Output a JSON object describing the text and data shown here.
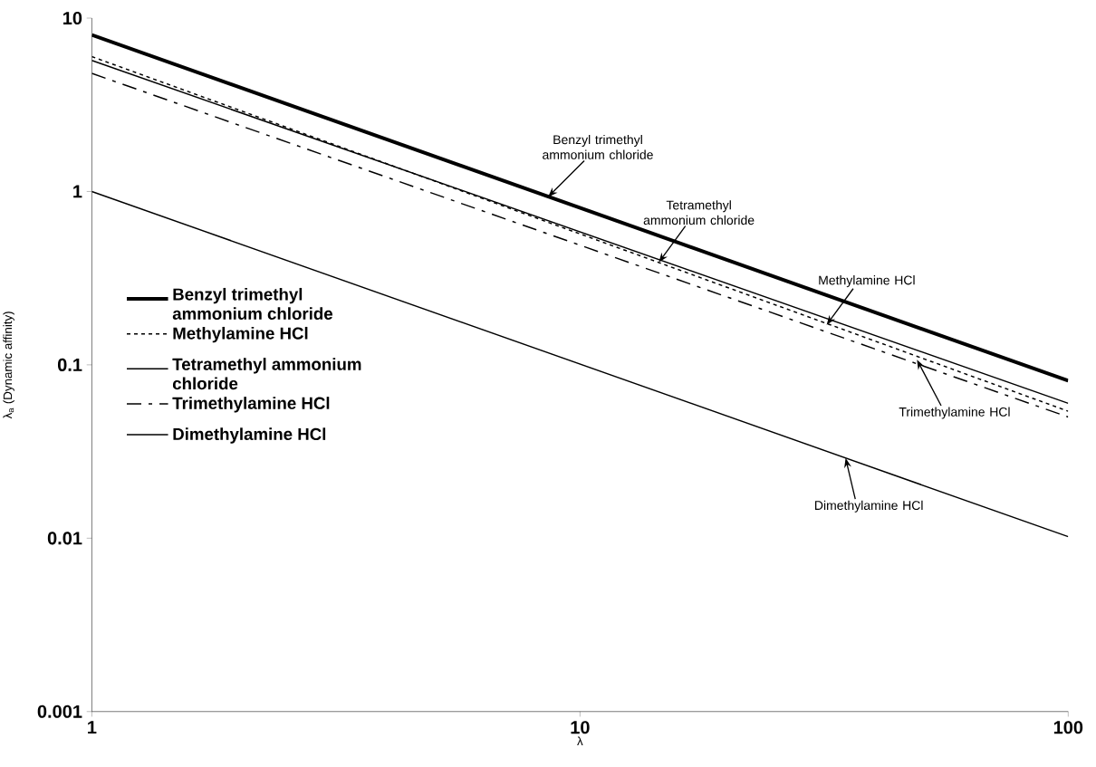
{
  "chart_data": {
    "type": "line",
    "xlabel": "λ",
    "ylabel": "λ$_{a}$ (Dynamic affinity)",
    "x": [
      1,
      100
    ],
    "log": "xy",
    "xlim": [
      1,
      100
    ],
    "ylim": [
      0.001,
      10
    ],
    "xticks": [
      1,
      10,
      100
    ],
    "yticks": [
      0.001,
      0.01,
      0.1,
      1,
      10
    ],
    "legend": "left",
    "grid": false,
    "marker": "none",
    "series": [
      {
        "name": "Benzyl trimethyl ammonium chloride",
        "color": "#000000",
        "line_style": "solid",
        "values": [
          8,
          0.081
        ]
      },
      {
        "name": "Methylamine HCl",
        "color": "#000000",
        "line_style": "dotted",
        "values": [
          6,
          0.054
        ]
      },
      {
        "name": "Tetramethyl ammonium chloride",
        "color": "#000000",
        "line_style": "solid",
        "values": [
          5.7,
          0.06
        ]
      },
      {
        "name": "Trimethylamine HCl",
        "color": "#000000",
        "line_style": "dashdot",
        "values": [
          4.8,
          0.05
        ]
      },
      {
        "name": "Dimethylamine HCl",
        "color": "#000000",
        "line_style": "solid",
        "values": [
          1,
          0.0102
        ]
      }
    ],
    "annotations": [
      {
        "text": "Benzyl trimethyl ammonium chloride",
        "x": 8.6,
        "y": 0.93
      },
      {
        "text": "Tetramethyl ammonium chloride",
        "x": 14.5,
        "y": 0.39
      },
      {
        "text": "Methylamine HCl",
        "x": 32,
        "y": 0.17
      },
      {
        "text": "Trimethylamine HCl",
        "x": 49,
        "y": 0.107
      },
      {
        "text": "Dimethylamine HCl",
        "x": 35,
        "y": 0.029
      }
    ]
  }
}
